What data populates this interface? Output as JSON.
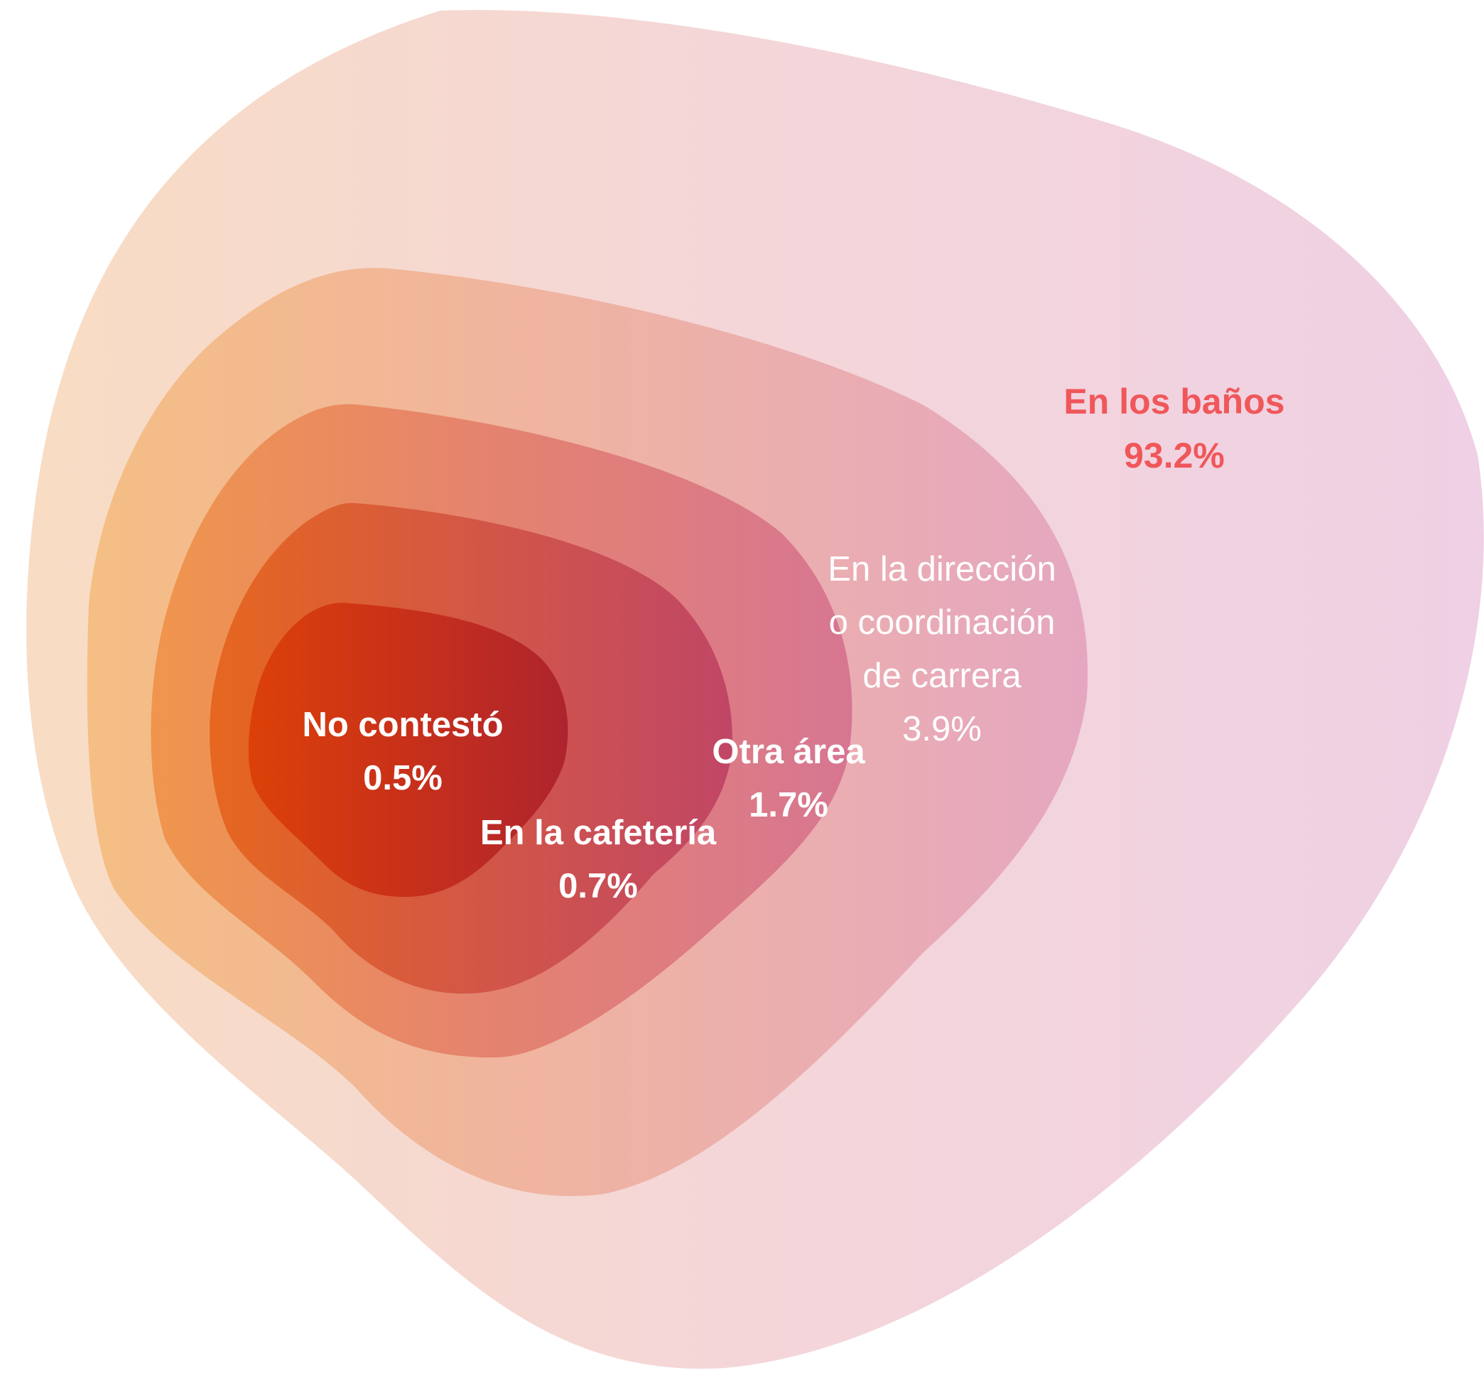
{
  "chart_data": {
    "type": "nested-area",
    "title": "",
    "series": [
      {
        "name": "En los baños",
        "label_lines": [
          "En los baños"
        ],
        "value_label": "93.2%",
        "value": 93.2,
        "label_color": "#f0575a",
        "gradient": [
          "#f8dcc3",
          "#f4d6d9",
          "#efd0e4"
        ]
      },
      {
        "name": "En la dirección o coordinación de carrera",
        "label_lines": [
          "En la dirección",
          "o coordinación",
          "de carrera"
        ],
        "value_label": "3.9%",
        "value": 3.9,
        "label_color": "#ffffff",
        "gradient": [
          "#f5be84",
          "#efb3a3",
          "#e5a7c0"
        ]
      },
      {
        "name": "Otra área",
        "label_lines": [
          "Otra área"
        ],
        "value_label": "1.7%",
        "value": 1.7,
        "label_color": "#ffffff",
        "gradient": [
          "#f0954d",
          "#e48270",
          "#d77692"
        ]
      },
      {
        "name": "En la cafetería",
        "label_lines": [
          "En la cafetería"
        ],
        "value_label": "0.7%",
        "value": 0.7,
        "label_color": "#ffffff",
        "gradient": [
          "#e6671f",
          "#d35745",
          "#c04666"
        ]
      },
      {
        "name": "No contestó",
        "label_lines": [
          "No contestó"
        ],
        "value_label": "0.5%",
        "value": 0.5,
        "label_color": "#ffffff",
        "gradient": [
          "#dc4108",
          "#c8301a",
          "#ae242e"
        ]
      }
    ]
  }
}
